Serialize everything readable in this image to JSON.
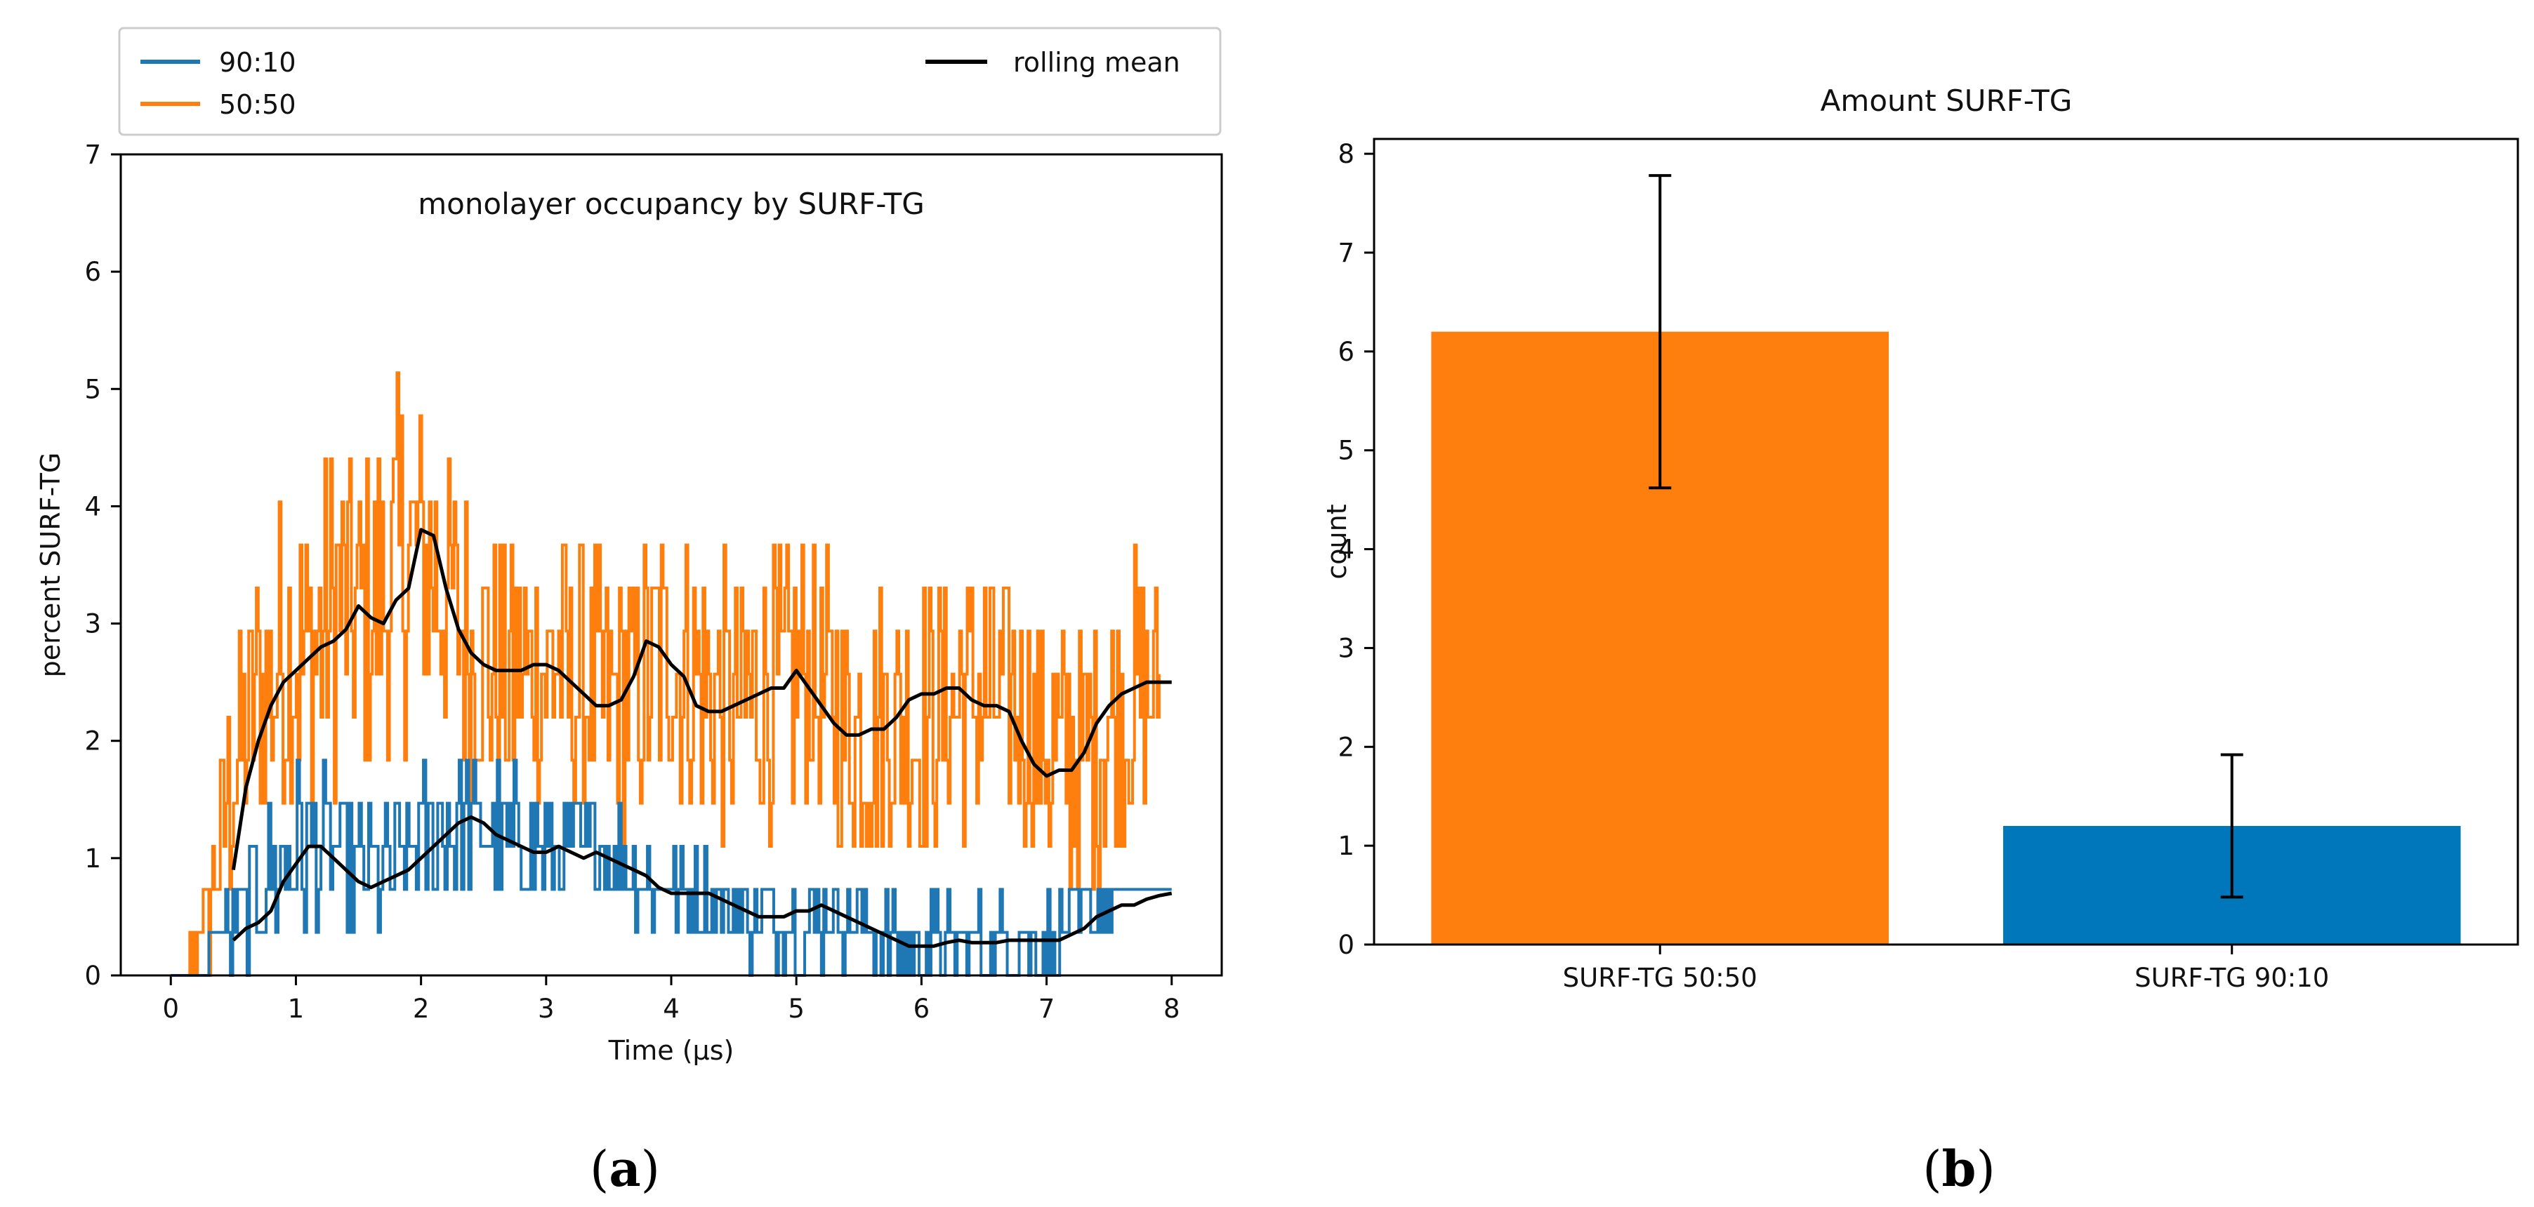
{
  "colors": {
    "orange": "#ff7f0e",
    "blue": "#1f77b4",
    "black": "#000000",
    "bar_orange": "#ff7f0e",
    "bar_blue": "#0077bb"
  },
  "chart_data": [
    {
      "type": "line",
      "panel_label": "a",
      "title": "monolayer occupancy by SURF-TG",
      "xlabel": "Time (µs)",
      "ylabel": "percent SURF-TG",
      "xlim": [
        -0.4,
        8.4
      ],
      "ylim": [
        0,
        7
      ],
      "xticks": [
        0,
        1,
        2,
        3,
        4,
        5,
        6,
        7,
        8
      ],
      "yticks": [
        0,
        1,
        2,
        3,
        4,
        5,
        6,
        7
      ],
      "legend": {
        "position": "above-plot",
        "entries": [
          "90:10",
          "50:50",
          "rolling mean"
        ]
      },
      "series": [
        {
          "name": "90:10",
          "style": "noisy-step",
          "x": [
            0.0,
            0.25,
            0.35,
            0.5,
            0.7,
            0.9,
            1.1,
            1.3,
            1.5,
            1.7,
            1.9,
            2.1,
            2.3,
            2.5,
            2.7,
            2.9,
            3.1,
            3.3,
            3.5,
            3.7,
            3.9,
            4.1,
            4.3,
            4.5,
            4.7,
            4.9,
            5.1,
            5.3,
            5.5,
            5.7,
            5.9,
            6.1,
            6.3,
            6.5,
            6.7,
            6.9,
            7.1,
            7.3,
            7.5,
            7.7,
            8.0
          ],
          "y": [
            0.0,
            0.0,
            0.36,
            0.36,
            0.7,
            1.0,
            1.1,
            1.05,
            0.9,
            0.85,
            1.0,
            1.2,
            1.3,
            1.25,
            1.15,
            1.1,
            1.05,
            1.05,
            1.0,
            0.95,
            0.8,
            0.7,
            0.6,
            0.55,
            0.45,
            0.5,
            0.45,
            0.5,
            0.45,
            0.35,
            0.2,
            0.3,
            0.3,
            0.3,
            0.3,
            0.3,
            0.35,
            0.45,
            0.6,
            0.7,
            0.73
          ],
          "noise": [
            0,
            0,
            0.1,
            0.4,
            0.6,
            0.7,
            0.7,
            0.6,
            0.6,
            0.6,
            0.6,
            0.7,
            0.7,
            0.6,
            0.6,
            0.55,
            0.5,
            0.5,
            0.45,
            0.45,
            0.45,
            0.4,
            0.4,
            0.35,
            0.35,
            0.35,
            0.35,
            0.35,
            0.35,
            0.35,
            0.35,
            0.3,
            0.3,
            0.3,
            0.3,
            0.3,
            0.3,
            0.25,
            0.2,
            0.15,
            0.1
          ]
        },
        {
          "name": "50:50",
          "style": "noisy-step",
          "x": [
            0.0,
            0.1,
            0.2,
            0.3,
            0.4,
            0.5,
            0.7,
            0.9,
            1.1,
            1.3,
            1.5,
            1.7,
            1.9,
            2.1,
            2.3,
            2.5,
            2.7,
            2.9,
            3.1,
            3.3,
            3.5,
            3.7,
            3.9,
            4.1,
            4.3,
            4.5,
            4.7,
            4.9,
            5.1,
            5.3,
            5.5,
            5.7,
            5.9,
            6.1,
            6.3,
            6.5,
            6.7,
            6.9,
            7.1,
            7.3,
            7.5,
            7.7,
            7.9
          ],
          "y": [
            0.0,
            0.0,
            0.3,
            0.5,
            1.2,
            1.8,
            2.4,
            2.7,
            2.8,
            3.1,
            3.1,
            3.3,
            3.6,
            3.6,
            2.9,
            2.7,
            2.6,
            2.6,
            2.6,
            2.5,
            2.4,
            2.4,
            2.7,
            2.7,
            2.4,
            2.3,
            2.4,
            2.4,
            2.6,
            2.3,
            2.1,
            2.2,
            2.1,
            2.3,
            2.4,
            2.4,
            2.3,
            2.1,
            1.8,
            1.9,
            2.2,
            2.4,
            2.5
          ],
          "noise": [
            0,
            0,
            0.2,
            0.5,
            0.8,
            1.2,
            1.3,
            1.4,
            1.4,
            1.5,
            1.5,
            1.5,
            1.6,
            1.5,
            1.4,
            1.3,
            1.2,
            1.2,
            1.2,
            1.2,
            1.2,
            1.2,
            1.2,
            1.2,
            1.2,
            1.2,
            1.2,
            1.2,
            1.2,
            1.2,
            1.2,
            1.2,
            1.2,
            1.2,
            1.2,
            1.2,
            1.2,
            1.2,
            1.2,
            1.2,
            1.2,
            1.2,
            1.0
          ]
        },
        {
          "name": "rolling mean (50:50)",
          "x": [
            0.5,
            0.6,
            0.7,
            0.8,
            0.9,
            1.0,
            1.1,
            1.2,
            1.3,
            1.4,
            1.5,
            1.6,
            1.7,
            1.8,
            1.9,
            2.0,
            2.1,
            2.2,
            2.3,
            2.4,
            2.5,
            2.6,
            2.7,
            2.8,
            2.9,
            3.0,
            3.1,
            3.2,
            3.3,
            3.4,
            3.5,
            3.6,
            3.7,
            3.8,
            3.9,
            4.0,
            4.1,
            4.2,
            4.3,
            4.4,
            4.5,
            4.6,
            4.7,
            4.8,
            4.9,
            5.0,
            5.1,
            5.2,
            5.3,
            5.4,
            5.5,
            5.6,
            5.7,
            5.8,
            5.9,
            6.0,
            6.1,
            6.2,
            6.3,
            6.4,
            6.5,
            6.6,
            6.7,
            6.8,
            6.9,
            7.0,
            7.1,
            7.2,
            7.3,
            7.4,
            7.5,
            7.6,
            7.7,
            7.8,
            7.9,
            8.0
          ],
          "y": [
            0.9,
            1.6,
            2.0,
            2.3,
            2.5,
            2.6,
            2.7,
            2.8,
            2.85,
            2.95,
            3.15,
            3.05,
            3.0,
            3.2,
            3.3,
            3.8,
            3.75,
            3.3,
            2.95,
            2.75,
            2.65,
            2.6,
            2.6,
            2.6,
            2.65,
            2.65,
            2.6,
            2.5,
            2.4,
            2.3,
            2.3,
            2.35,
            2.55,
            2.85,
            2.8,
            2.65,
            2.55,
            2.3,
            2.25,
            2.25,
            2.3,
            2.35,
            2.4,
            2.45,
            2.45,
            2.6,
            2.45,
            2.3,
            2.15,
            2.05,
            2.05,
            2.1,
            2.1,
            2.2,
            2.35,
            2.4,
            2.4,
            2.45,
            2.45,
            2.35,
            2.3,
            2.3,
            2.25,
            2.0,
            1.8,
            1.7,
            1.75,
            1.75,
            1.9,
            2.15,
            2.3,
            2.4,
            2.45,
            2.5,
            2.5,
            2.5
          ]
        },
        {
          "name": "rolling mean (90:10)",
          "x": [
            0.5,
            0.6,
            0.7,
            0.8,
            0.9,
            1.0,
            1.1,
            1.2,
            1.3,
            1.4,
            1.5,
            1.6,
            1.7,
            1.8,
            1.9,
            2.0,
            2.1,
            2.2,
            2.3,
            2.4,
            2.5,
            2.6,
            2.7,
            2.8,
            2.9,
            3.0,
            3.1,
            3.2,
            3.3,
            3.4,
            3.5,
            3.6,
            3.7,
            3.8,
            3.9,
            4.0,
            4.1,
            4.2,
            4.3,
            4.4,
            4.5,
            4.6,
            4.7,
            4.8,
            4.9,
            5.0,
            5.1,
            5.2,
            5.3,
            5.4,
            5.5,
            5.6,
            5.7,
            5.8,
            5.9,
            6.0,
            6.1,
            6.2,
            6.3,
            6.4,
            6.5,
            6.6,
            6.7,
            6.8,
            6.9,
            7.0,
            7.1,
            7.2,
            7.3,
            7.4,
            7.5,
            7.6,
            7.7,
            7.8,
            7.9,
            8.0
          ],
          "y": [
            0.3,
            0.4,
            0.45,
            0.55,
            0.8,
            0.95,
            1.1,
            1.1,
            1.0,
            0.9,
            0.8,
            0.75,
            0.8,
            0.85,
            0.9,
            1.0,
            1.1,
            1.2,
            1.3,
            1.35,
            1.3,
            1.2,
            1.15,
            1.1,
            1.05,
            1.05,
            1.1,
            1.05,
            1.0,
            1.05,
            1.0,
            0.95,
            0.9,
            0.85,
            0.75,
            0.7,
            0.7,
            0.7,
            0.7,
            0.65,
            0.6,
            0.55,
            0.5,
            0.5,
            0.5,
            0.55,
            0.55,
            0.6,
            0.55,
            0.5,
            0.45,
            0.4,
            0.35,
            0.3,
            0.25,
            0.25,
            0.25,
            0.28,
            0.3,
            0.28,
            0.28,
            0.28,
            0.3,
            0.3,
            0.3,
            0.3,
            0.3,
            0.35,
            0.4,
            0.5,
            0.55,
            0.6,
            0.6,
            0.65,
            0.68,
            0.7
          ]
        }
      ]
    },
    {
      "type": "bar",
      "panel_label": "b",
      "title": "Amount SURF-TG",
      "xlabel": "",
      "ylabel": "count",
      "ylim": [
        0,
        8.15
      ],
      "yticks": [
        0,
        1,
        2,
        3,
        4,
        5,
        6,
        7,
        8
      ],
      "categories": [
        "SURF-TG 50:50",
        "SURF-TG 90:10"
      ],
      "values": [
        6.2,
        1.2
      ],
      "errors": [
        1.58,
        0.72
      ],
      "bar_colors": [
        "#ff7f0e",
        "#0077bb"
      ]
    }
  ],
  "captions": {
    "a": "a",
    "b": "b"
  }
}
